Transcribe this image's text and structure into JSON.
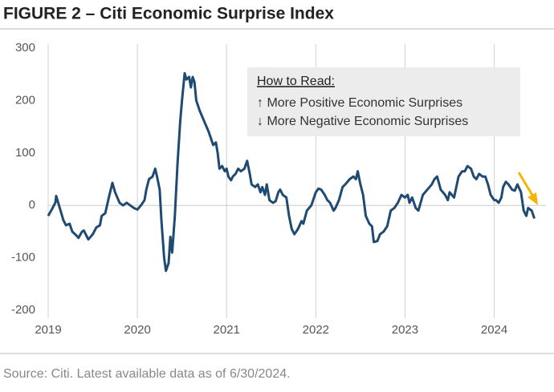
{
  "chart_data": {
    "type": "line",
    "title": "FIGURE 2 – Citi Economic Surprise Index",
    "annotation": {
      "title": "How to Read:",
      "lines": [
        "↑ More Positive Economic Surprises",
        "↓ More Negative Economic Surprises"
      ]
    },
    "source": "Source: Citi. Latest available data as of 6/30/2024.",
    "color": "#1f4a72",
    "xlim": [
      2019,
      2024.58
    ],
    "xticks": [
      2019,
      2020,
      2021,
      2022,
      2023,
      2024
    ],
    "ylim": [
      -200,
      300
    ],
    "yticks": [
      300,
      200,
      100,
      0,
      -100,
      -200
    ],
    "grid": true,
    "x": [
      2019.0,
      2019.04,
      2019.08,
      2019.09,
      2019.13,
      2019.17,
      2019.2,
      2019.24,
      2019.27,
      2019.32,
      2019.34,
      2019.38,
      2019.4,
      2019.45,
      2019.5,
      2019.54,
      2019.58,
      2019.6,
      2019.64,
      2019.68,
      2019.72,
      2019.75,
      2019.8,
      2019.84,
      2019.88,
      2019.92,
      2019.96,
      2020.0,
      2020.04,
      2020.08,
      2020.1,
      2020.13,
      2020.17,
      2020.2,
      2020.22,
      2020.25,
      2020.27,
      2020.3,
      2020.32,
      2020.35,
      2020.37,
      2020.39,
      2020.42,
      2020.45,
      2020.48,
      2020.5,
      2020.53,
      2020.55,
      2020.58,
      2020.6,
      2020.62,
      2020.64,
      2020.66,
      2020.7,
      2020.75,
      2020.8,
      2020.85,
      2020.88,
      2020.9,
      2020.92,
      2020.95,
      2020.98,
      2021.0,
      2021.02,
      2021.05,
      2021.07,
      2021.1,
      2021.13,
      2021.16,
      2021.2,
      2021.23,
      2021.26,
      2021.28,
      2021.32,
      2021.35,
      2021.38,
      2021.4,
      2021.43,
      2021.45,
      2021.48,
      2021.52,
      2021.55,
      2021.58,
      2021.6,
      2021.63,
      2021.67,
      2021.7,
      2021.73,
      2021.76,
      2021.8,
      2021.84,
      2021.86,
      2021.9,
      2021.95,
      2022.0,
      2022.03,
      2022.06,
      2022.1,
      2022.13,
      2022.16,
      2022.2,
      2022.22,
      2022.26,
      2022.3,
      2022.33,
      2022.38,
      2022.42,
      2022.45,
      2022.47,
      2022.5,
      2022.53,
      2022.56,
      2022.6,
      2022.63,
      2022.65,
      2022.69,
      2022.72,
      2022.76,
      2022.8,
      2022.84,
      2022.88,
      2022.92,
      2022.96,
      2023.0,
      2023.03,
      2023.05,
      2023.08,
      2023.1,
      2023.12,
      2023.15,
      2023.2,
      2023.25,
      2023.3,
      2023.33,
      2023.36,
      2023.4,
      2023.45,
      2023.48,
      2023.5,
      2023.55,
      2023.6,
      2023.64,
      2023.67,
      2023.7,
      2023.74,
      2023.77,
      2023.8,
      2023.83,
      2023.87,
      2023.9,
      2023.93,
      2023.96,
      2024.0,
      2024.02,
      2024.05,
      2024.08,
      2024.1,
      2024.13,
      2024.16,
      2024.2,
      2024.23,
      2024.26,
      2024.3,
      2024.33,
      2024.36,
      2024.38,
      2024.42,
      2024.45
    ],
    "values": [
      -20,
      -8,
      5,
      18,
      -5,
      -28,
      -38,
      -35,
      -50,
      -58,
      -62,
      -50,
      -48,
      -65,
      -55,
      -42,
      -38,
      -20,
      -15,
      15,
      43,
      25,
      5,
      0,
      5,
      0,
      -5,
      -8,
      0,
      10,
      30,
      50,
      55,
      70,
      55,
      30,
      -30,
      -100,
      -125,
      -110,
      -60,
      -90,
      -20,
      80,
      160,
      200,
      252,
      240,
      245,
      225,
      245,
      235,
      200,
      180,
      160,
      140,
      115,
      120,
      100,
      70,
      75,
      65,
      70,
      55,
      48,
      55,
      60,
      70,
      65,
      70,
      85,
      60,
      40,
      35,
      40,
      25,
      35,
      20,
      40,
      10,
      5,
      8,
      25,
      30,
      20,
      15,
      -20,
      -45,
      -55,
      -45,
      -30,
      -35,
      -10,
      0,
      25,
      32,
      30,
      20,
      10,
      5,
      -10,
      -5,
      10,
      35,
      40,
      50,
      55,
      50,
      65,
      40,
      20,
      -20,
      -35,
      -40,
      -70,
      -68,
      -55,
      -50,
      -40,
      -10,
      -5,
      5,
      20,
      15,
      20,
      5,
      15,
      5,
      -5,
      -10,
      20,
      30,
      40,
      50,
      55,
      30,
      20,
      10,
      25,
      15,
      55,
      65,
      65,
      75,
      70,
      55,
      50,
      60,
      55,
      55,
      40,
      20,
      10,
      10,
      5,
      15,
      35,
      45,
      40,
      30,
      28,
      40,
      25,
      -10,
      -20,
      -5,
      -10,
      -25
    ]
  }
}
